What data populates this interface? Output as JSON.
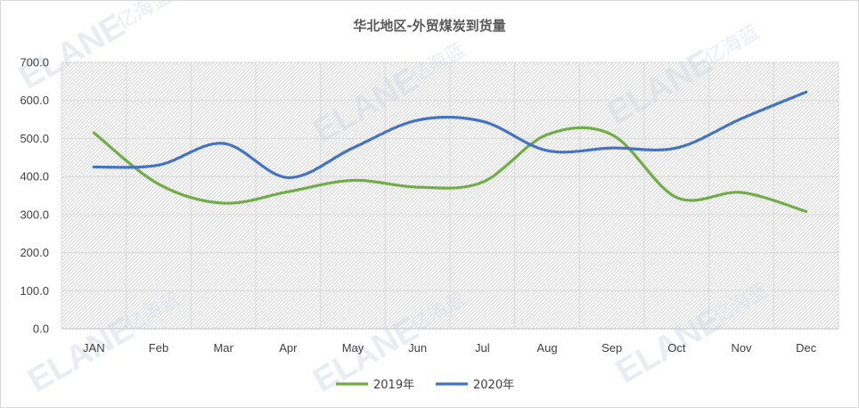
{
  "chart_data": {
    "type": "line",
    "title": "华北地区-外贸煤炭到货量",
    "categories": [
      "JAN",
      "Feb",
      "Mar",
      "Apr",
      "May",
      "Jun",
      "Jul",
      "Aug",
      "Sep",
      "Oct",
      "Nov",
      "Dec"
    ],
    "series": [
      {
        "name": "2019年",
        "color": "#70ad47",
        "values": [
          515,
          380,
          330,
          360,
          390,
          372,
          385,
          510,
          510,
          345,
          358,
          308
        ]
      },
      {
        "name": "2020年",
        "color": "#4472c4",
        "values": [
          425,
          430,
          487,
          397,
          475,
          548,
          545,
          468,
          475,
          475,
          552,
          622
        ]
      }
    ],
    "yticks": [
      "0.0",
      "100.0",
      "200.0",
      "300.0",
      "400.0",
      "500.0",
      "600.0",
      "700.0"
    ],
    "ylim": [
      0,
      700
    ],
    "grid": true,
    "legend_position": "bottom"
  },
  "watermark": {
    "brand": "ELANE",
    "cn": "亿海蓝"
  }
}
